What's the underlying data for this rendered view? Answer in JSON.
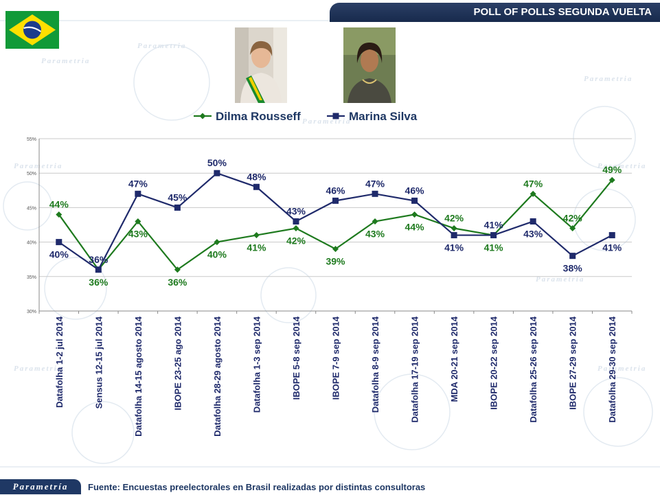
{
  "header": {
    "title": "POLL OF POLLS SEGUNDA VUELTA"
  },
  "footer": {
    "logo_text": "Parametría",
    "source": "Fuente: Encuestas preelectorales en Brasil realizadas por distintas consultoras"
  },
  "colors": {
    "dilma": "#1e7a1e",
    "marina": "#1f2a6b",
    "banner": "#1f3864"
  },
  "chart_data": {
    "type": "line",
    "categories": [
      "Datafolha 1-2 jul 2014",
      "Sensus 12-15 jul 2014",
      "Datafolha 14-15 agosto 2014",
      "IBOPE 23-25 ago 2014",
      "Datafolha 28-29 agosto 2014",
      "Datafolha 1-3 sep 2014",
      "IBOPE 5-8 sep 2014",
      "IBOPE 7-9 sep 2014",
      "Datafolha 8-9 sep 2014",
      "Datafolha 17-19 sep 2014",
      "MDA 20-21 sep 2014",
      "IBOPE 20-22 sep 2014",
      "Datafolha 25-26 sep 2014",
      "IBOPE 27-29 sep 2014",
      "Datafolha 29-30 sep 2014"
    ],
    "series": [
      {
        "name": "Dilma Rousseff",
        "values": [
          44,
          36,
          43,
          36,
          40,
          41,
          42,
          39,
          43,
          44,
          42,
          41,
          47,
          42,
          49
        ]
      },
      {
        "name": "Marina Silva",
        "values": [
          40,
          36,
          47,
          45,
          50,
          48,
          43,
          46,
          47,
          46,
          41,
          41,
          43,
          38,
          41
        ]
      }
    ],
    "data_labels": [
      [
        "44%",
        "36%",
        "43%",
        "36%",
        "40%",
        "41%",
        "42%",
        "39%",
        "43%",
        "44%",
        "42%",
        "41%",
        "47%",
        "42%",
        "49%"
      ],
      [
        "40%",
        "36%",
        "47%",
        "45%",
        "50%",
        "48%",
        "43%",
        "46%",
        "47%",
        "46%",
        "41%",
        "41%",
        "43%",
        "38%",
        "41%"
      ]
    ],
    "yticks": [
      30,
      35,
      40,
      45,
      50,
      55
    ],
    "ytick_labels": [
      "30%",
      "35%",
      "40%",
      "45%",
      "50%",
      "55%"
    ],
    "ylim": [
      30,
      55
    ],
    "grid": true,
    "legend": "top-center"
  }
}
